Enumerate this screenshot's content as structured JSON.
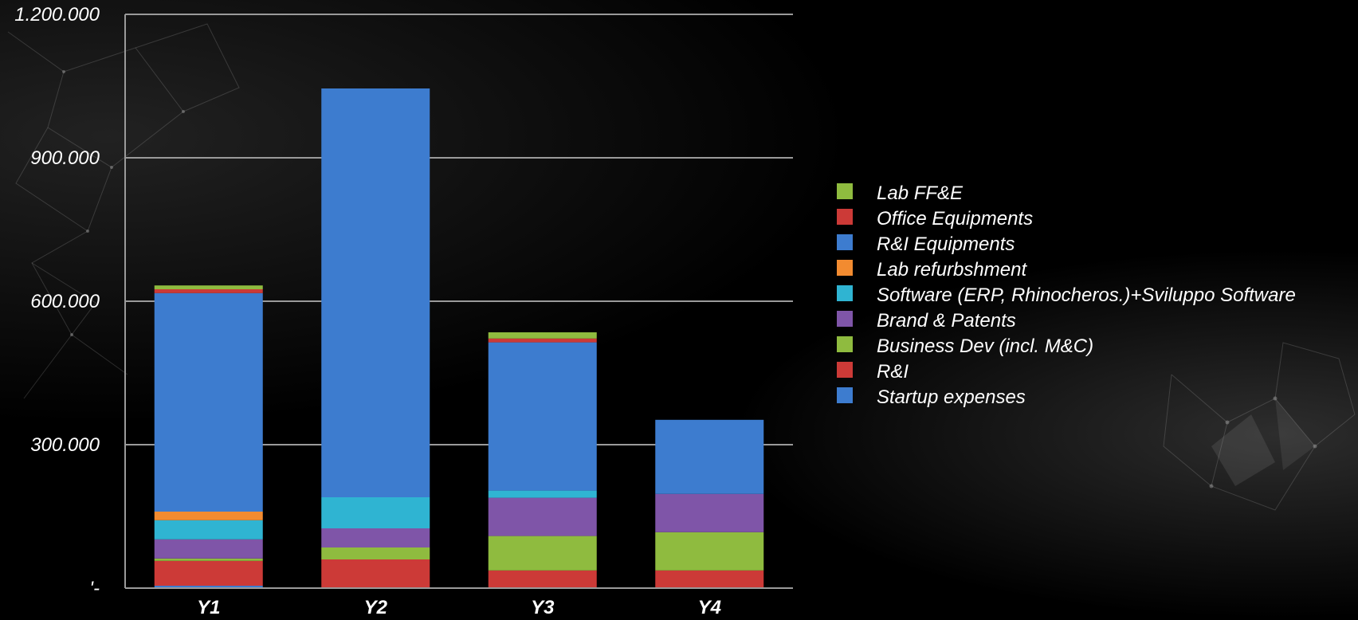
{
  "chart_data": {
    "type": "bar",
    "stacked": true,
    "categories": [
      "Y1",
      "Y2",
      "Y3",
      "Y4"
    ],
    "ylim": [
      0,
      1200000
    ],
    "yticks": [
      {
        "value": 0,
        "label": "'-"
      },
      {
        "value": 300000,
        "label": "300.000"
      },
      {
        "value": 600000,
        "label": "600.000"
      },
      {
        "value": 900000,
        "label": "900.000"
      },
      {
        "value": 1200000,
        "label": "1.200.000"
      }
    ],
    "grid": true,
    "legend_position": "right",
    "series": [
      {
        "name": "Startup expenses",
        "color": "#3d7ccf",
        "values": [
          5000,
          0,
          0,
          0
        ]
      },
      {
        "name": "R&I",
        "color": "#cc3a37",
        "values": [
          52000,
          60000,
          37000,
          37000
        ]
      },
      {
        "name": "Business Dev (incl. M&C)",
        "color": "#8fbb3f",
        "values": [
          5000,
          25000,
          72000,
          80000
        ]
      },
      {
        "name": "Brand & Patents",
        "color": "#7f55a8",
        "values": [
          40000,
          40000,
          80000,
          80000
        ]
      },
      {
        "name": "Software (ERP, Rhinocheros.)+Sviluppo Software",
        "color": "#2fb4d2",
        "values": [
          40000,
          65000,
          15000,
          0
        ]
      },
      {
        "name": "Lab refurbshment",
        "color": "#f28b30",
        "values": [
          18000,
          0,
          0,
          0
        ]
      },
      {
        "name": "R&I Equipments",
        "color": "#3d7ccf",
        "values": [
          457000,
          855000,
          310000,
          155000
        ]
      },
      {
        "name": "Office Equipments",
        "color": "#cc3a37",
        "values": [
          8000,
          0,
          8000,
          0
        ]
      },
      {
        "name": "Lab  FF&E",
        "color": "#8fbb3f",
        "values": [
          8000,
          0,
          13000,
          0
        ]
      }
    ]
  }
}
